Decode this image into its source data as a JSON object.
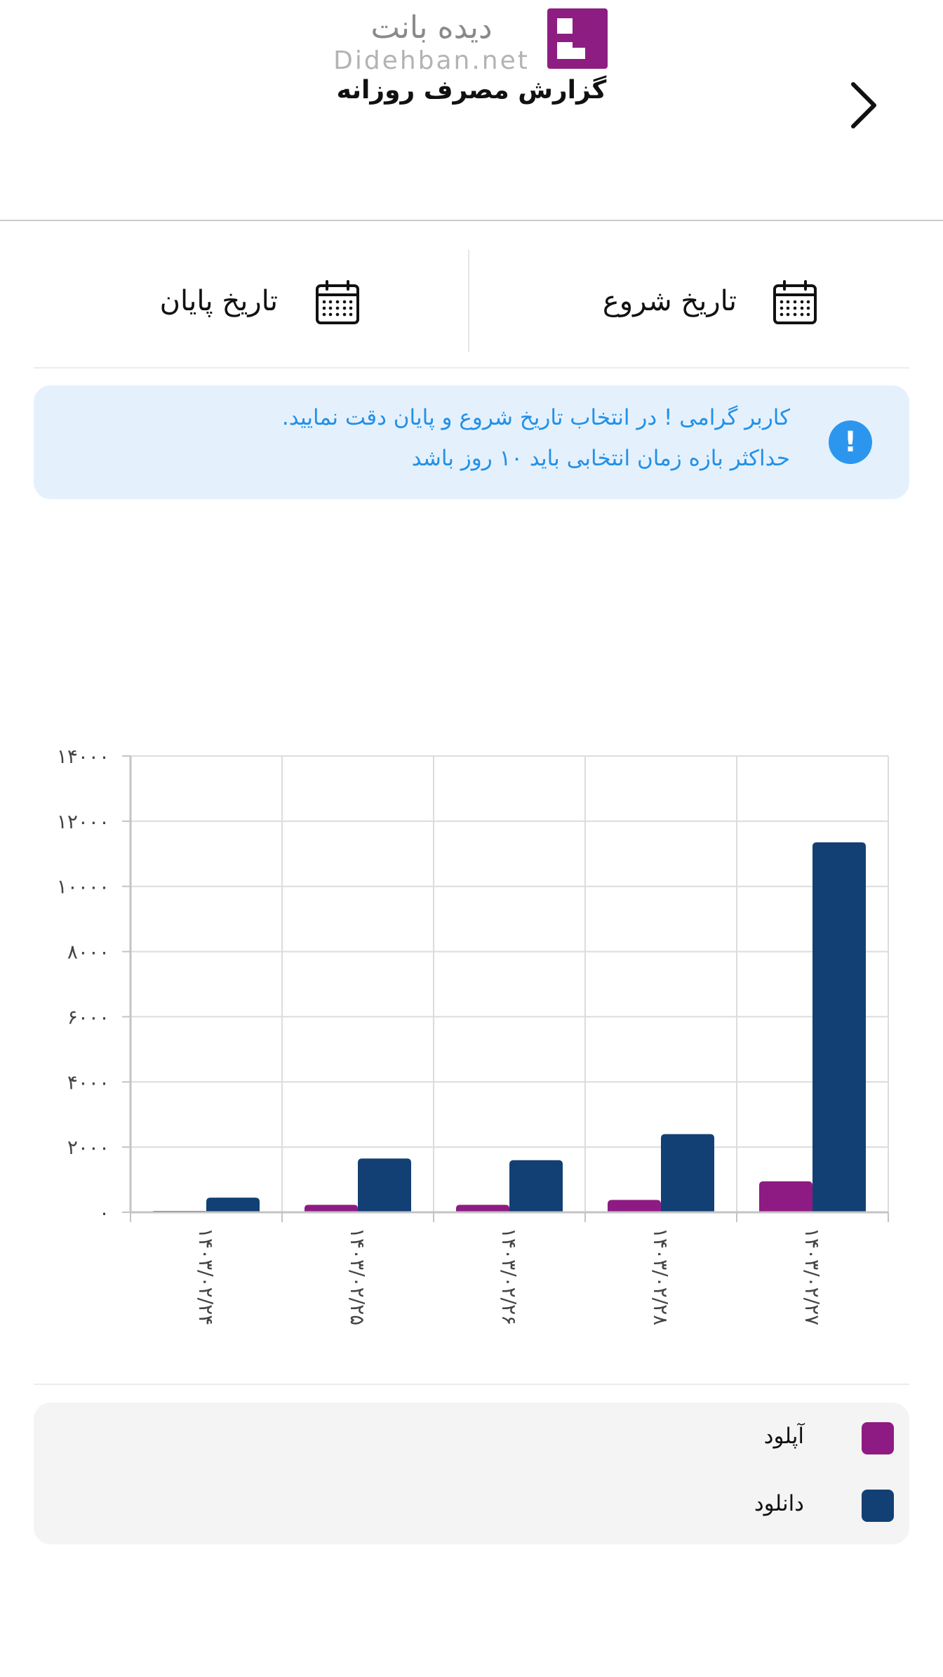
{
  "header": {
    "logo_fa": "دیده بانت",
    "logo_en": "Didehban.net",
    "title": "گزارش مصرف روزانه"
  },
  "icons": {
    "back": "chevron-right-icon",
    "calendar": "calendar-icon",
    "alert": "exclamation-circle-icon"
  },
  "date_filter": {
    "start_label": "تاریخ شروع",
    "end_label": "تاریخ پایان"
  },
  "alert": {
    "icon_glyph": "!",
    "line1": "کاربر گرامی ! در انتخاب تاریخ شروع و پایان دقت نمایید.",
    "line2": "حداکثر بازه زمان انتخابی باید ۱۰ روز باشد"
  },
  "colors": {
    "brand": "#8e1d82",
    "upload": "#8e1b83",
    "download": "#134074",
    "alert_bg": "#e4f1fd",
    "alert_text": "#2390e6",
    "alert_icon": "#2c96ee",
    "legend_bg": "#f4f4f4"
  },
  "chart_data": {
    "type": "bar",
    "categories": [
      "۱۴۰۳/۰۲/۲۷",
      "۱۴۰۳/۰۲/۲۸",
      "۱۴۰۳/۰۲/۲۶",
      "۱۴۰۳/۰۲/۲۵",
      "۱۴۰۳/۰۲/۲۴"
    ],
    "series": [
      {
        "name": "آپلود",
        "color": "#8e1b83",
        "values": [
          950,
          380,
          230,
          230,
          40
        ]
      },
      {
        "name": "دانلود",
        "color": "#134074",
        "values": [
          11350,
          2400,
          1600,
          1650,
          450
        ]
      }
    ],
    "ylim": [
      0,
      14000
    ],
    "yticks": [
      0,
      2000,
      4000,
      6000,
      8000,
      10000,
      12000,
      14000
    ],
    "ytick_labels": [
      "۰",
      "۲۰۰۰",
      "۴۰۰۰",
      "۶۰۰۰",
      "۸۰۰۰",
      "۱۰۰۰۰",
      "۱۲۰۰۰",
      "۱۴۰۰۰"
    ],
    "grid": true,
    "legend_position": "bottom",
    "x_order": "right-to-left"
  },
  "legend": {
    "items": [
      {
        "label": "آپلود",
        "color": "#8e1b83"
      },
      {
        "label": "دانلود",
        "color": "#134074"
      }
    ]
  }
}
